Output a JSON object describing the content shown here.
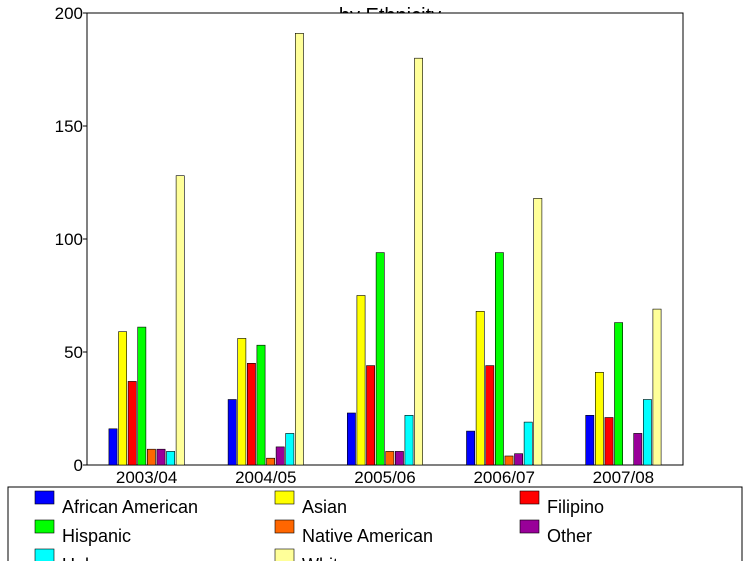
{
  "chart_data": {
    "type": "bar",
    "title": "by Ethnicity",
    "categories": [
      "2003/04",
      "2004/05",
      "2005/06",
      "2006/07",
      "2007/08"
    ],
    "ylim": [
      0,
      200
    ],
    "yticks": [
      "0",
      "50",
      "100",
      "150",
      "200"
    ],
    "grid": false,
    "legend_position": "bottom",
    "series": [
      {
        "name": "African American",
        "color": "#0000ff",
        "values": [
          16,
          29,
          23,
          15,
          22
        ]
      },
      {
        "name": "Asian",
        "color": "#ffff00",
        "values": [
          59,
          56,
          75,
          68,
          41
        ]
      },
      {
        "name": "Filipino",
        "color": "#ff0000",
        "values": [
          37,
          45,
          44,
          44,
          21
        ]
      },
      {
        "name": "Hispanic",
        "color": "#00ff00",
        "values": [
          61,
          53,
          94,
          94,
          63
        ]
      },
      {
        "name": "Native American",
        "color": "#ff6600",
        "values": [
          7,
          3,
          6,
          4,
          0
        ]
      },
      {
        "name": "Other",
        "color": "#990099",
        "values": [
          7,
          8,
          6,
          5,
          14
        ]
      },
      {
        "name": "Unknown",
        "color": "#00ffff",
        "values": [
          6,
          14,
          22,
          19,
          29
        ]
      },
      {
        "name": "White",
        "color": "#ffff99",
        "values": [
          128,
          191,
          180,
          118,
          69
        ]
      }
    ]
  }
}
